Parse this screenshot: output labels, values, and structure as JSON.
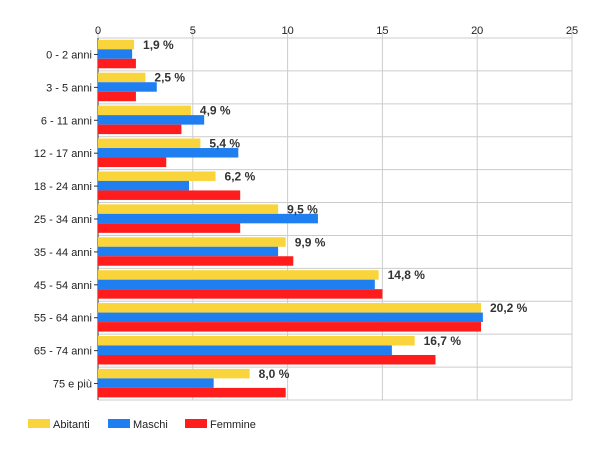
{
  "chart_data": {
    "type": "bar",
    "orientation": "horizontal",
    "categories": [
      "0 - 2 anni",
      "3 - 5 anni",
      "6 - 11 anni",
      "12 - 17 anni",
      "18 - 24 anni",
      "25 - 34 anni",
      "35 - 44 anni",
      "45 - 54 anni",
      "55 - 64 anni",
      "65 - 74 anni",
      "75 e più"
    ],
    "series": [
      {
        "name": "Abitanti",
        "color": "#f9d43a",
        "values": [
          1.9,
          2.5,
          4.9,
          5.4,
          6.2,
          9.5,
          9.9,
          14.8,
          20.2,
          16.7,
          8.0
        ]
      },
      {
        "name": "Maschi",
        "color": "#1f7ef0",
        "values": [
          1.8,
          3.1,
          5.6,
          7.4,
          4.8,
          11.6,
          9.5,
          14.6,
          20.3,
          15.5,
          6.1
        ]
      },
      {
        "name": "Femmine",
        "color": "#ff1c1c",
        "values": [
          2.0,
          2.0,
          4.4,
          3.6,
          7.5,
          7.5,
          10.3,
          15.0,
          20.2,
          17.8,
          9.9
        ]
      }
    ],
    "data_labels": [
      "1,9 %",
      "2,5 %",
      "4,9 %",
      "5,4 %",
      "6,2 %",
      "9,5 %",
      "9,9 %",
      "14,8 %",
      "20,2 %",
      "16,7 %",
      "8,0 %"
    ],
    "x_ticks": [
      "0",
      "5",
      "10",
      "15",
      "20",
      "25"
    ],
    "xlim": [
      0,
      25
    ],
    "grid": true,
    "legend_position": "bottom-left",
    "title": "",
    "xlabel": "",
    "ylabel": ""
  }
}
